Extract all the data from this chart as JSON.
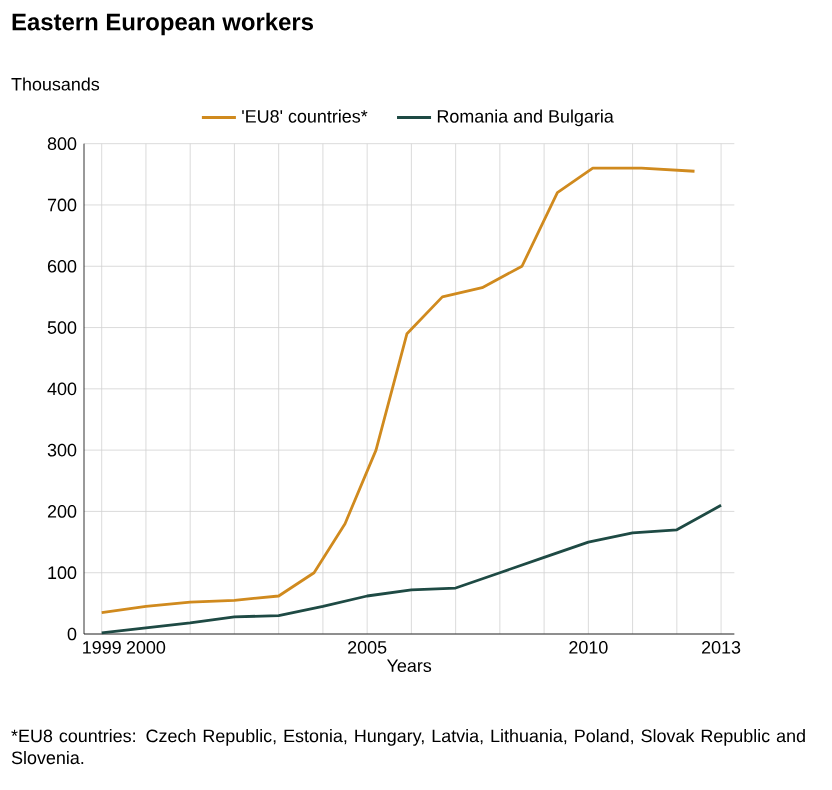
{
  "chart_data": {
    "type": "line",
    "title": "Eastern European workers",
    "ylabel": "Thousands",
    "xlabel": "Years",
    "xlim": [
      1998.6,
      2013.3
    ],
    "ylim": [
      0,
      800
    ],
    "xticks": [
      1999,
      2000,
      {
        "value": 2001,
        "label": null
      },
      {
        "value": 2002,
        "label": null
      },
      {
        "value": 2003,
        "label": null
      },
      {
        "value": 2004,
        "label": null
      },
      2005,
      {
        "value": 2006,
        "label": null
      },
      {
        "value": 2007,
        "label": null
      },
      {
        "value": 2008,
        "label": null
      },
      {
        "value": 2009,
        "label": null
      },
      2010,
      {
        "value": 2011,
        "label": null
      },
      {
        "value": 2012,
        "label": null
      },
      2013
    ],
    "yticks": [
      0,
      100,
      200,
      300,
      400,
      500,
      600,
      700,
      800
    ],
    "grid": true,
    "legend": "top",
    "series": [
      {
        "name": "'EU8' countries*",
        "color": "#d08a1e",
        "x": [
          1999,
          2000,
          2001,
          2002,
          2003,
          2003.8,
          2004.5,
          2005.2,
          2005.9,
          2006.7,
          2007.6,
          2008.5,
          2009.3,
          2010.1,
          2011.2,
          2012.4
        ],
        "values": [
          35,
          45,
          52,
          55,
          62,
          100,
          180,
          300,
          490,
          550,
          565,
          600,
          720,
          760,
          760,
          755
        ]
      },
      {
        "name": "Romania and Bulgaria",
        "color": "#1e4a44",
        "x": [
          1999,
          2000,
          2001,
          2002,
          2003,
          2004,
          2005,
          2006,
          2007,
          2008,
          2009,
          2010,
          2011,
          2012,
          2013
        ],
        "values": [
          2,
          10,
          18,
          28,
          30,
          45,
          62,
          72,
          75,
          100,
          125,
          150,
          165,
          170,
          210
        ]
      }
    ],
    "annotations": [
      "*EU8 countries: Czech Republic, Estonia, Hungary, Latvia, Lithuania, Poland, Slovak Republic and Slovenia."
    ]
  }
}
